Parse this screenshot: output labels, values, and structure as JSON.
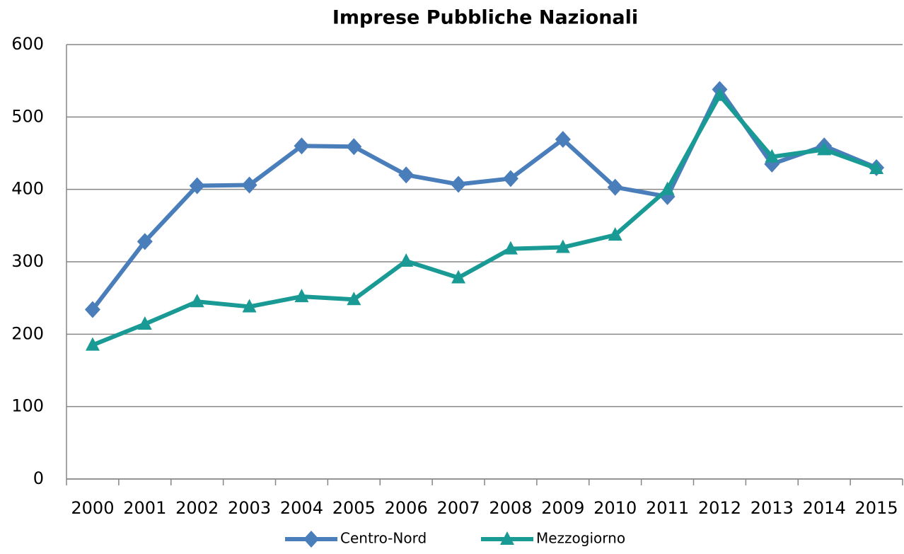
{
  "chart_data": {
    "type": "line",
    "title": "Imprese Pubbliche Nazionali",
    "categories": [
      "2000",
      "2001",
      "2002",
      "2003",
      "2004",
      "2005",
      "2006",
      "2007",
      "2008",
      "2009",
      "2010",
      "2011",
      "2012",
      "2013",
      "2014",
      "2015"
    ],
    "series": [
      {
        "name": "Centro-Nord",
        "color": "#4a7ebb",
        "marker": "diamond",
        "values": [
          234,
          328,
          405,
          406,
          460,
          459,
          420,
          407,
          415,
          469,
          403,
          390,
          538,
          435,
          460,
          430
        ]
      },
      {
        "name": "Mezzogiorno",
        "color": "#1a9a94",
        "marker": "triangle",
        "values": [
          185,
          214,
          245,
          238,
          252,
          248,
          301,
          278,
          318,
          320,
          337,
          400,
          530,
          445,
          455,
          429
        ]
      }
    ],
    "ylim": [
      0,
      600
    ],
    "yticks": [
      0,
      100,
      200,
      300,
      400,
      500,
      600
    ],
    "grid": true,
    "legend": "bottom"
  }
}
